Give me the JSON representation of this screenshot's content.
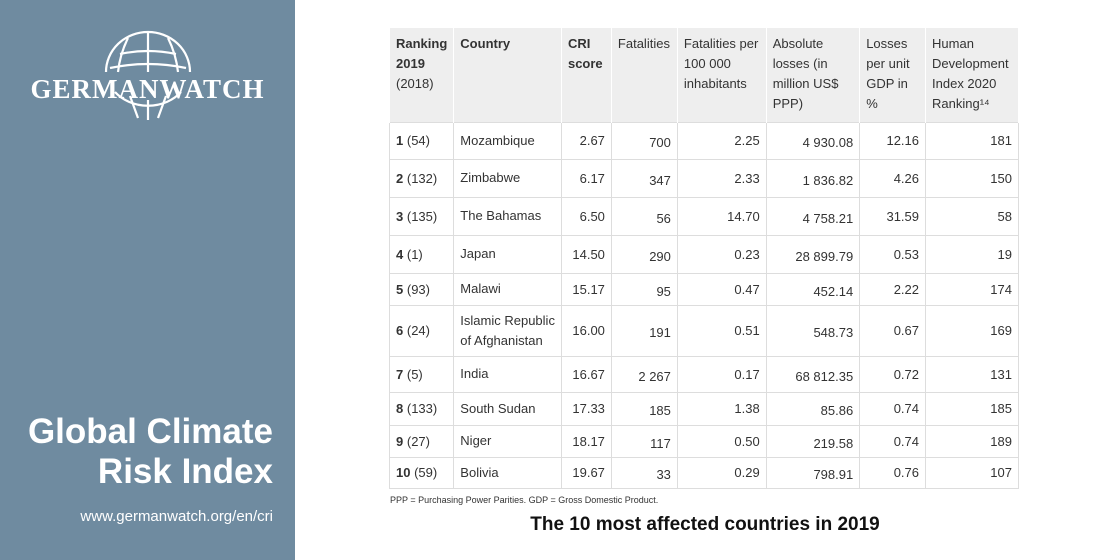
{
  "sidebar": {
    "logo_text": "GERMANWATCH",
    "title_line1": "Global Climate",
    "title_line2": "Risk Index",
    "url": "www.germanwatch.org/en/cri"
  },
  "table": {
    "headers": [
      {
        "bold": "Ranking 2019",
        "rest": "(2018)"
      },
      {
        "bold": "Country",
        "rest": ""
      },
      {
        "bold": "CRI score",
        "rest": ""
      },
      {
        "bold": "",
        "rest": "Fatalities"
      },
      {
        "bold": "",
        "rest": "Fatalities per 100 000 inhabitants"
      },
      {
        "bold": "",
        "rest": "Absolute losses (in million US$ PPP)"
      },
      {
        "bold": "",
        "rest": "Losses per unit GDP in %"
      },
      {
        "bold": "",
        "rest": "Human Development Index 2020 Ranking¹⁴"
      }
    ],
    "rows": [
      {
        "rank": "1",
        "prev": "(54)",
        "country": "Mozambique",
        "cri": "2.67",
        "fat": "700",
        "fat100k": "2.25",
        "abs": "4 930.08",
        "gdp": "12.16",
        "hdi": "181"
      },
      {
        "rank": "2",
        "prev": "(132)",
        "country": "Zimbabwe",
        "cri": "6.17",
        "fat": "347",
        "fat100k": "2.33",
        "abs": "1 836.82",
        "gdp": "4.26",
        "hdi": "150"
      },
      {
        "rank": "3",
        "prev": "(135)",
        "country": "The Bahamas",
        "cri": "6.50",
        "fat": "56",
        "fat100k": "14.70",
        "abs": "4 758.21",
        "gdp": "31.59",
        "hdi": "58"
      },
      {
        "rank": "4",
        "prev": "(1)",
        "country": "Japan",
        "cri": "14.50",
        "fat": "290",
        "fat100k": "0.23",
        "abs": "28 899.79",
        "gdp": "0.53",
        "hdi": "19"
      },
      {
        "rank": "5",
        "prev": "(93)",
        "country": "Malawi",
        "cri": "15.17",
        "fat": "95",
        "fat100k": "0.47",
        "abs": "452.14",
        "gdp": "2.22",
        "hdi": "174"
      },
      {
        "rank": "6",
        "prev": "(24)",
        "country": "Islamic Republic of Afghanistan",
        "cri": "16.00",
        "fat": "191",
        "fat100k": "0.51",
        "abs": "548.73",
        "gdp": "0.67",
        "hdi": "169"
      },
      {
        "rank": "7",
        "prev": "(5)",
        "country": "India",
        "cri": "16.67",
        "fat": "2 267",
        "fat100k": "0.17",
        "abs": "68 812.35",
        "gdp": "0.72",
        "hdi": "131"
      },
      {
        "rank": "8",
        "prev": "(133)",
        "country": "South Sudan",
        "cri": "17.33",
        "fat": "185",
        "fat100k": "1.38",
        "abs": "85.86",
        "gdp": "0.74",
        "hdi": "185"
      },
      {
        "rank": "9",
        "prev": "(27)",
        "country": "Niger",
        "cri": "18.17",
        "fat": "117",
        "fat100k": "0.50",
        "abs": "219.58",
        "gdp": "0.74",
        "hdi": "189"
      },
      {
        "rank": "10",
        "prev": "(59)",
        "country": "Bolivia",
        "cri": "19.67",
        "fat": "33",
        "fat100k": "0.29",
        "abs": "798.91",
        "gdp": "0.76",
        "hdi": "107"
      }
    ]
  },
  "note": "PPP = Purchasing Power Parities. GDP = Gross Domestic Product.",
  "caption": "The 10 most affected countries in 2019"
}
